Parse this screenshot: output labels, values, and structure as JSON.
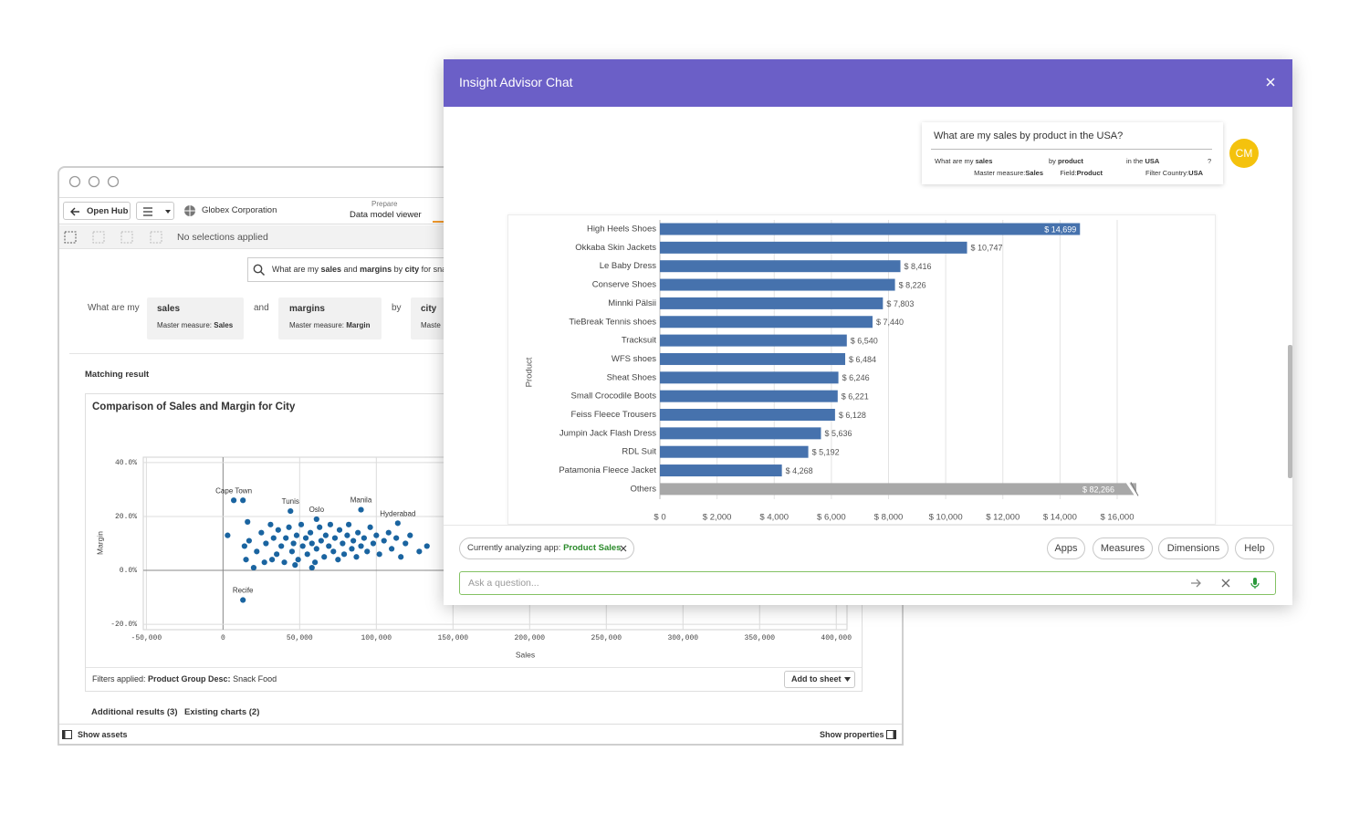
{
  "window": {
    "open_hub": "Open Hub",
    "org": "Globex Corporation",
    "prepare": "Prepare",
    "view": "Data model viewer",
    "selections": "No selections applied",
    "search": [
      "What are my ",
      "sales",
      " and ",
      "margins",
      " by ",
      "city",
      " for snac"
    ],
    "query": {
      "lead": "What are my",
      "joins": [
        "and",
        "by"
      ],
      "chips": [
        {
          "term": "sales",
          "detail": "Master measure: ",
          "value": "Sales"
        },
        {
          "term": "margins",
          "detail": "Master measure: ",
          "value": "Margin"
        },
        {
          "term": "city",
          "detail": "Maste"
        }
      ]
    },
    "matching": "Matching result",
    "filters": {
      "label": "Filters applied:",
      "field": "Product Group Desc:",
      "value": "Snack Food"
    },
    "add_to_sheet": "Add to sheet",
    "additional": "Additional results (3)",
    "existing": "Existing charts (2)",
    "show_assets": "Show assets",
    "show_properties": "Show properties"
  },
  "chat": {
    "title": "Insight Advisor Chat",
    "question": "What are my sales by product in the USA?",
    "tokens": [
      {
        "text": [
          "What are my ",
          "sales"
        ],
        "detail": [
          "Master measure:",
          "Sales"
        ]
      },
      {
        "text": [
          "by ",
          "product"
        ],
        "detail": [
          "Field:",
          "Product"
        ]
      },
      {
        "text": [
          "in the ",
          "USA"
        ],
        "detail": [
          "Filter Country:",
          "USA"
        ]
      },
      {
        "text": [
          "?"
        ]
      }
    ],
    "avatar": "CM",
    "app_label": "Currently analyzing app:",
    "app_name": "Product Sales",
    "buttons": [
      "Apps",
      "Measures",
      "Dimensions",
      "Help"
    ],
    "placeholder": "Ask a question..."
  },
  "chart_data": [
    {
      "type": "scatter",
      "title": "Comparison of Sales and Margin for City",
      "x_label": "Sales",
      "y_label": "Margin",
      "color": "#1a64a0",
      "grid": true,
      "xlim": [
        -52000,
        407000
      ],
      "ylim": [
        -22,
        42
      ],
      "xticks": [
        {
          "value": -50000,
          "label": "-50,000"
        },
        0,
        {
          "value": 50000,
          "label": "50,000"
        },
        {
          "value": 100000,
          "label": "100,000"
        },
        {
          "value": 150000,
          "label": "150,000"
        },
        {
          "value": 200000,
          "label": "200,000"
        },
        {
          "value": 250000,
          "label": "250,000"
        },
        {
          "value": 300000,
          "label": "300,000"
        },
        {
          "value": 350000,
          "label": "350,000"
        },
        {
          "value": 400000,
          "label": "400,000"
        }
      ],
      "yticks": [
        {
          "value": -20,
          "label": "-20.0%"
        },
        {
          "value": 0,
          "label": "0.0%"
        },
        {
          "value": 20,
          "label": "20.0%"
        },
        {
          "value": 40,
          "label": "40.0%"
        }
      ],
      "labels": [
        "Cape Town",
        "Tunis",
        "Oslo",
        "Manila",
        "Hyderabad",
        "Recife",
        null,
        null,
        null,
        null,
        null,
        null,
        null,
        null,
        null,
        null,
        null,
        null,
        null,
        null,
        null,
        null,
        null,
        null,
        null,
        null,
        null,
        null,
        null,
        null,
        null,
        null,
        null,
        null,
        null,
        null,
        null,
        null,
        null,
        null,
        null,
        null,
        null,
        null,
        null,
        null,
        null,
        null,
        null,
        null,
        null,
        null,
        null,
        null,
        null,
        null,
        null,
        null,
        null,
        null,
        null,
        null,
        null,
        null,
        null,
        null,
        null,
        null,
        null,
        null,
        null,
        null,
        null,
        null
      ],
      "x": [
        7000,
        44000,
        61000,
        90000,
        114000,
        13000,
        13000,
        3000,
        16000,
        17000,
        15000,
        14000,
        22000,
        25000,
        27000,
        28000,
        31000,
        33000,
        35000,
        36000,
        38000,
        40000,
        41000,
        43000,
        45000,
        46000,
        48000,
        49000,
        51000,
        52000,
        54000,
        55000,
        57000,
        58000,
        60000,
        61000,
        63000,
        64000,
        66000,
        67000,
        69000,
        70000,
        72000,
        73000,
        75000,
        76000,
        78000,
        79000,
        81000,
        82000,
        84000,
        85000,
        87000,
        88000,
        90000,
        92000,
        94000,
        96000,
        98000,
        100000,
        102000,
        105000,
        108000,
        110000,
        113000,
        116000,
        119000,
        122000,
        128000,
        133000,
        20000,
        32000,
        47000,
        58000
      ],
      "values": [
        26,
        22,
        19,
        22.5,
        17.5,
        -11,
        26,
        13,
        18,
        11,
        4,
        9,
        7,
        14,
        3,
        10,
        17,
        12,
        6,
        15,
        9,
        3,
        12,
        16,
        7,
        10,
        13,
        4,
        17,
        9,
        12,
        6,
        14,
        10,
        3,
        8,
        16,
        11,
        5,
        13,
        9,
        17,
        7,
        12,
        4,
        15,
        10,
        6,
        13,
        17,
        8,
        11,
        5,
        14,
        9,
        12,
        7,
        16,
        10,
        13,
        6,
        11,
        14,
        8,
        12,
        5,
        10,
        13,
        7,
        9,
        1,
        4,
        2,
        1
      ]
    },
    {
      "type": "hbar",
      "y_label": "Product",
      "grid": true,
      "xlim": [
        0,
        16000
      ],
      "xticks": [
        {
          "value": 0,
          "label": "$ 0"
        },
        {
          "value": 2000,
          "label": "$ 2,000"
        },
        {
          "value": 4000,
          "label": "$ 4,000"
        },
        {
          "value": 6000,
          "label": "$ 6,000"
        },
        {
          "value": 8000,
          "label": "$ 8,000"
        },
        {
          "value": 10000,
          "label": "$ 10,000"
        },
        {
          "value": 12000,
          "label": "$ 12,000"
        },
        {
          "value": 14000,
          "label": "$ 14,000"
        },
        {
          "value": 16000,
          "label": "$ 16,000"
        }
      ],
      "categories": [
        "High Heels Shoes",
        "Okkaba Skin Jackets",
        "Le Baby Dress",
        "Conserve Shoes",
        "Minnki Pälsii",
        "TieBreak Tennis shoes",
        "Tracksuit",
        "WFS shoes",
        "Sheat Shoes",
        "Small Crocodile Boots",
        "Feiss Fleece Trousers",
        "Jumpin Jack Flash Dress",
        "RDL Suit",
        "Patamonia Fleece Jacket",
        "Others"
      ],
      "values": [
        14699,
        10747,
        8416,
        8226,
        7803,
        7440,
        6540,
        6484,
        6246,
        6221,
        6128,
        5636,
        5192,
        4268,
        82266
      ],
      "value_labels": [
        "$ 14,699",
        "$ 10,747",
        "$ 8,416",
        "$ 8,226",
        "$ 7,803",
        "$ 7,440",
        "$ 6,540",
        "$ 6,484",
        "$ 6,246",
        "$ 6,221",
        "$ 6,128",
        "$ 5,636",
        "$ 5,192",
        "$ 4,268",
        "$ 82,266"
      ],
      "colors": [
        "#4672ad",
        "#4672ad",
        "#4672ad",
        "#4672ad",
        "#4672ad",
        "#4672ad",
        "#4672ad",
        "#4672ad",
        "#4672ad",
        "#4672ad",
        "#4672ad",
        "#4672ad",
        "#4672ad",
        "#4672ad",
        "#a8a8a8"
      ]
    }
  ]
}
